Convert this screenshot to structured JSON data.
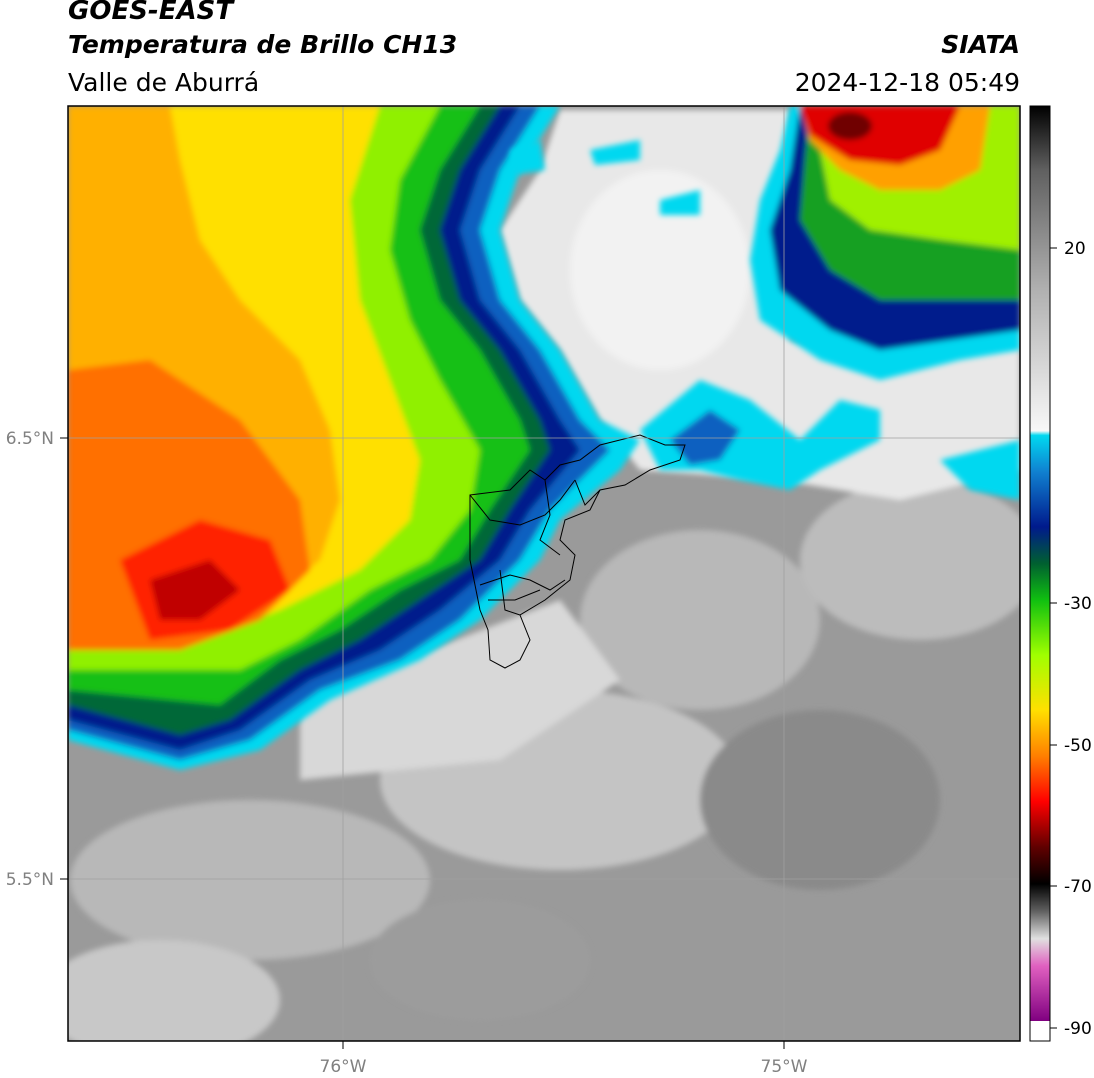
{
  "header": {
    "satellite": "GOES-EAST",
    "product": "Temperatura de Brillo CH13",
    "region": "Valle de Aburrá",
    "organization": "SIATA",
    "datetime": "2024-12-18 05:49"
  },
  "map": {
    "lat_labels": [
      "6.5°N",
      "5.5°N"
    ],
    "lon_labels": [
      "76°W",
      "75°W"
    ],
    "boundary": "Valle de Aburrá municipalities"
  },
  "colorbar": {
    "ticks": [
      "20",
      "-30",
      "-50",
      "-70",
      "-90"
    ],
    "range": [
      -90,
      30
    ],
    "colors": {
      "warm_gray_high": "#f0f0f0",
      "cyan": "#00d8f0",
      "navy": "#001a8c",
      "green": "#10c010",
      "yellow": "#ffe000",
      "orange": "#ff8000",
      "red": "#e00000",
      "black": "#000000",
      "magenta": "#e060c0",
      "purple": "#800080"
    }
  }
}
